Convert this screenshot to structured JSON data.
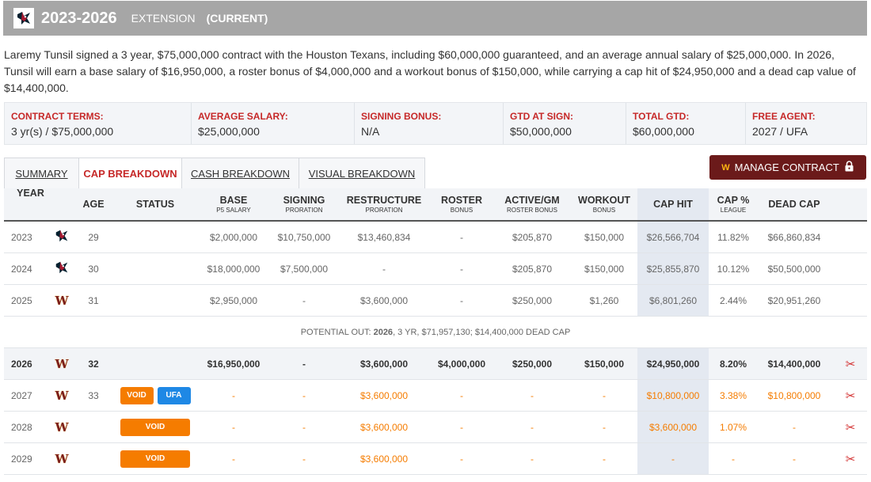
{
  "header": {
    "years": "2023-2026",
    "type": "EXTENSION",
    "status": "(CURRENT)"
  },
  "summary": "Laremy Tunsil signed a 3 year, $75,000,000 contract with the Houston Texans, including $60,000,000 guaranteed, and an average annual salary of $25,000,000. In 2026, Tunsil will earn a base salary of $16,950,000, a roster bonus of $4,000,000 and a workout bonus of $150,000, while carrying a cap hit of $24,950,000 and a dead cap value of $14,400,000.",
  "terms": [
    {
      "label": "CONTRACT TERMS:",
      "value": "3 yr(s) / $75,000,000"
    },
    {
      "label": "AVERAGE SALARY:",
      "value": "$25,000,000"
    },
    {
      "label": "SIGNING BONUS:",
      "value": "N/A"
    },
    {
      "label": "GTD AT SIGN:",
      "value": "$50,000,000"
    },
    {
      "label": "TOTAL GTD:",
      "value": "$60,000,000"
    },
    {
      "label": "FREE AGENT:",
      "value": "2027 / UFA"
    }
  ],
  "tabs": [
    {
      "label": "SUMMARY"
    },
    {
      "label": "CAP BREAKDOWN"
    },
    {
      "label": "CASH BREAKDOWN"
    },
    {
      "label": "VISUAL BREAKDOWN"
    }
  ],
  "manage_button": {
    "label": "MANAGE CONTRACT"
  },
  "columns": [
    {
      "label": "YEAR",
      "sub": ""
    },
    {
      "label": "",
      "sub": ""
    },
    {
      "label": "AGE",
      "sub": ""
    },
    {
      "label": "STATUS",
      "sub": ""
    },
    {
      "label": "BASE",
      "sub": "P5 SALARY"
    },
    {
      "label": "SIGNING",
      "sub": "PRORATION"
    },
    {
      "label": "RESTRUCTURE",
      "sub": "PRORATION"
    },
    {
      "label": "ROSTER",
      "sub": "BONUS"
    },
    {
      "label": "ACTIVE/GM",
      "sub": "ROSTER BONUS"
    },
    {
      "label": "WORKOUT",
      "sub": "BONUS"
    },
    {
      "label": "CAP HIT",
      "sub": ""
    },
    {
      "label": "CAP %",
      "sub": "LEAGUE"
    },
    {
      "label": "DEAD CAP",
      "sub": ""
    }
  ],
  "rows": [
    {
      "year": "2023",
      "team": "houston",
      "age": "29",
      "base": "$2,000,000",
      "signing": "$10,750,000",
      "restructure": "$13,460,834",
      "roster": "-",
      "active": "$205,870",
      "workout": "$150,000",
      "cap_hit": "$26,566,704",
      "cap_pct": "11.82%",
      "dead_cap": "$66,860,834"
    },
    {
      "year": "2024",
      "team": "houston",
      "age": "30",
      "base": "$18,000,000",
      "signing": "$7,500,000",
      "restructure": "-",
      "roster": "-",
      "active": "$205,870",
      "workout": "$150,000",
      "cap_hit": "$25,855,870",
      "cap_pct": "10.12%",
      "dead_cap": "$50,500,000"
    },
    {
      "year": "2025",
      "team": "washington",
      "age": "31",
      "base": "$2,950,000",
      "signing": "-",
      "restructure": "$3,600,000",
      "roster": "-",
      "active": "$250,000",
      "workout": "$1,260",
      "cap_hit": "$6,801,260",
      "cap_pct": "2.44%",
      "dead_cap": "$20,951,260"
    }
  ],
  "potential_out": {
    "prefix": "POTENTIAL OUT: ",
    "year": "2026",
    "detail": ", 3 YR, $71,957,130; $14,400,000 DEAD CAP"
  },
  "future_rows": [
    {
      "year": "2026",
      "team": "washington",
      "age": "32",
      "badges": [],
      "base": "$16,950,000",
      "signing": "-",
      "restructure": "$3,600,000",
      "roster": "$4,000,000",
      "active": "$250,000",
      "workout": "$150,000",
      "cap_hit": "$24,950,000",
      "cap_pct": "8.20%",
      "dead_cap": "$14,400,000"
    },
    {
      "year": "2027",
      "team": "washington",
      "age": "33",
      "badges": [
        "VOID",
        "UFA"
      ],
      "base": "-",
      "signing": "-",
      "restructure": "$3,600,000",
      "roster": "-",
      "active": "-",
      "workout": "-",
      "cap_hit": "$10,800,000",
      "cap_pct": "3.38%",
      "dead_cap": "$10,800,000"
    },
    {
      "year": "2028",
      "team": "washington",
      "age": "",
      "badges": [
        "VOID"
      ],
      "base": "-",
      "signing": "-",
      "restructure": "$3,600,000",
      "roster": "-",
      "active": "-",
      "workout": "-",
      "cap_hit": "$3,600,000",
      "cap_pct": "1.07%",
      "dead_cap": "-"
    },
    {
      "year": "2029",
      "team": "washington",
      "age": "",
      "badges": [
        "VOID"
      ],
      "base": "-",
      "signing": "-",
      "restructure": "$3,600,000",
      "roster": "-",
      "active": "-",
      "workout": "-",
      "cap_hit": "-",
      "cap_pct": "-",
      "dead_cap": "-"
    }
  ],
  "colors": {
    "header_bg": "#a6a6a6",
    "accent_red": "#c62828",
    "manage_bg": "#6b1a1a",
    "void_orange": "#f57c00",
    "ufa_blue": "#1e88e5"
  },
  "icons": {
    "houston": "texans-logo-icon",
    "washington": "commanders-w-logo-icon",
    "lock": "lock-icon",
    "cut": "scissors-icon"
  }
}
